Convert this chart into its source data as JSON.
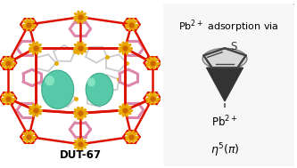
{
  "fig_width": 3.33,
  "fig_height": 1.89,
  "dpi": 100,
  "bg_color": "#ffffff",
  "box_bg": "#f7f7f7",
  "box_edge_color": "#999999",
  "title_text": "Pb$^{2+}$ adsorption via",
  "title_fontsize": 8.0,
  "dut_label": "DUT-67",
  "dut_fontsize": 8.5,
  "red": "#dd1100",
  "yellow": "#e8a800",
  "orange": "#cc6600",
  "pink": "#dd88aa",
  "gray": "#999999",
  "lgray": "#cccccc",
  "teal": "#55c9a8",
  "teal_edge": "#3aaa88",
  "teal_hi": "#99eecc"
}
